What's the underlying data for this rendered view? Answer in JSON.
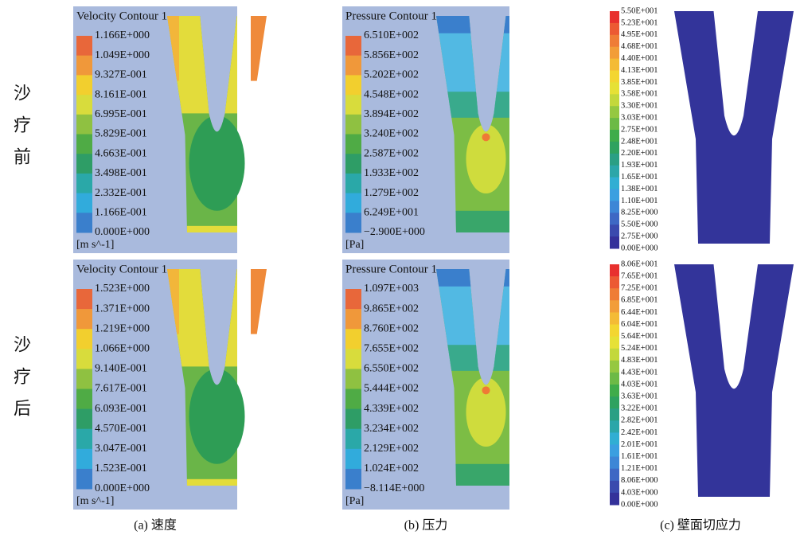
{
  "row_labels": [
    "沙疗前",
    "沙疗后"
  ],
  "captions": [
    "(a) 速度",
    "(b) 压力",
    "(c) 壁面切应力"
  ],
  "panels": [
    [
      {
        "title": "Velocity Contour 1",
        "labels": [
          "1.166E+000",
          "1.049E+000",
          "9.327E-001",
          "8.161E-001",
          "6.995E-001",
          "5.829E-001",
          "4.663E-001",
          "3.498E-001",
          "2.332E-001",
          "1.166E-001",
          "0.000E+000"
        ],
        "unit": "[m s^-1]"
      },
      {
        "title": "Pressure Contour 1",
        "labels": [
          "6.510E+002",
          "5.856E+002",
          "5.202E+002",
          "4.548E+002",
          "3.894E+002",
          "3.240E+002",
          "2.587E+002",
          "1.933E+002",
          "1.279E+002",
          "6.249E+001",
          "−2.900E+000"
        ],
        "unit": "[Pa]"
      },
      {
        "labels": [
          "5.50E+001",
          "5.23E+001",
          "4.95E+001",
          "4.68E+001",
          "4.40E+001",
          "4.13E+001",
          "3.85E+001",
          "3.58E+001",
          "3.30E+001",
          "3.03E+001",
          "2.75E+001",
          "2.48E+001",
          "2.20E+001",
          "1.93E+001",
          "1.65E+001",
          "1.38E+001",
          "1.10E+001",
          "8.25E+000",
          "5.50E+000",
          "2.75E+000",
          "0.00E+000"
        ]
      }
    ],
    [
      {
        "title": "Velocity Contour 1",
        "labels": [
          "1.523E+000",
          "1.371E+000",
          "1.219E+000",
          "1.066E+000",
          "9.140E-001",
          "7.617E-001",
          "6.093E-001",
          "4.570E-001",
          "3.047E-001",
          "1.523E-001",
          "0.000E+000"
        ],
        "unit": "[m s^-1]"
      },
      {
        "title": "Pressure Contour 1",
        "labels": [
          "1.097E+003",
          "9.865E+002",
          "8.760E+002",
          "7.655E+002",
          "6.550E+002",
          "5.444E+002",
          "4.339E+002",
          "3.234E+002",
          "2.129E+002",
          "1.024E+002",
          "−8.114E+000"
        ],
        "unit": "[Pa]"
      },
      {
        "labels": [
          "8.06E+001",
          "7.65E+001",
          "7.25E+001",
          "6.85E+001",
          "6.44E+001",
          "6.04E+001",
          "5.64E+001",
          "5.24E+001",
          "4.83E+001",
          "4.43E+001",
          "4.03E+001",
          "3.63E+001",
          "3.22E+001",
          "2.82E+001",
          "2.42E+001",
          "2.01E+001",
          "1.61E+001",
          "1.21E+001",
          "8.06E+000",
          "4.03E+000",
          "0.00E+000"
        ]
      }
    ]
  ]
}
